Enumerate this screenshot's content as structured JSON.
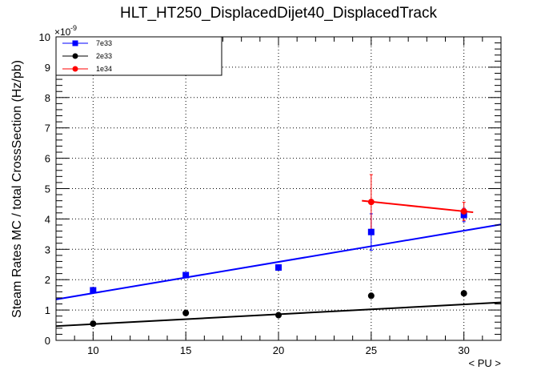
{
  "chart_data": {
    "type": "scatter",
    "title": "HLT_HT250_DisplacedDijet40_DisplacedTrack",
    "xlabel": "< PU >",
    "ylabel": "Steam Rates MC / total CrossSection (Hz/pb)",
    "y_multiplier": "×10",
    "y_exponent": "-9",
    "xlim": [
      8,
      32
    ],
    "ylim": [
      0,
      10
    ],
    "x_ticks": [
      10,
      15,
      20,
      25,
      30
    ],
    "y_ticks": [
      0,
      1,
      2,
      3,
      4,
      5,
      6,
      7,
      8,
      9,
      10
    ],
    "grid": true,
    "legend_position": "top-left",
    "series": [
      {
        "name": "7e33",
        "color": "#0000ff",
        "marker": "square",
        "points": [
          {
            "x": 10,
            "y": 1.65,
            "err": 0.08
          },
          {
            "x": 15,
            "y": 2.15,
            "err": 0.08
          },
          {
            "x": 20,
            "y": 2.4,
            "err": 0.08
          },
          {
            "x": 25,
            "y": 3.57,
            "err": 0.6
          },
          {
            "x": 30,
            "y": 4.13,
            "err": 0.22
          }
        ],
        "fit": {
          "x": [
            8,
            32
          ],
          "y": [
            1.35,
            3.82
          ]
        }
      },
      {
        "name": "2e33",
        "color": "#000000",
        "marker": "circle",
        "points": [
          {
            "x": 10,
            "y": 0.55,
            "err": 0.04
          },
          {
            "x": 15,
            "y": 0.9,
            "err": 0.05
          },
          {
            "x": 20,
            "y": 0.83,
            "err": 0.05
          },
          {
            "x": 25,
            "y": 1.47,
            "err": 0.08
          },
          {
            "x": 30,
            "y": 1.55,
            "err": 0.06
          }
        ],
        "fit": {
          "x": [
            8,
            32
          ],
          "y": [
            0.47,
            1.25
          ]
        }
      },
      {
        "name": "1e34",
        "color": "#ff0000",
        "marker": "circle",
        "points": [
          {
            "x": 25,
            "y": 4.56,
            "err": 0.9
          },
          {
            "x": 30,
            "y": 4.25,
            "err": 0.3
          }
        ],
        "fit": {
          "x": [
            24.5,
            30.5
          ],
          "y": [
            4.6,
            4.22
          ]
        }
      }
    ]
  }
}
